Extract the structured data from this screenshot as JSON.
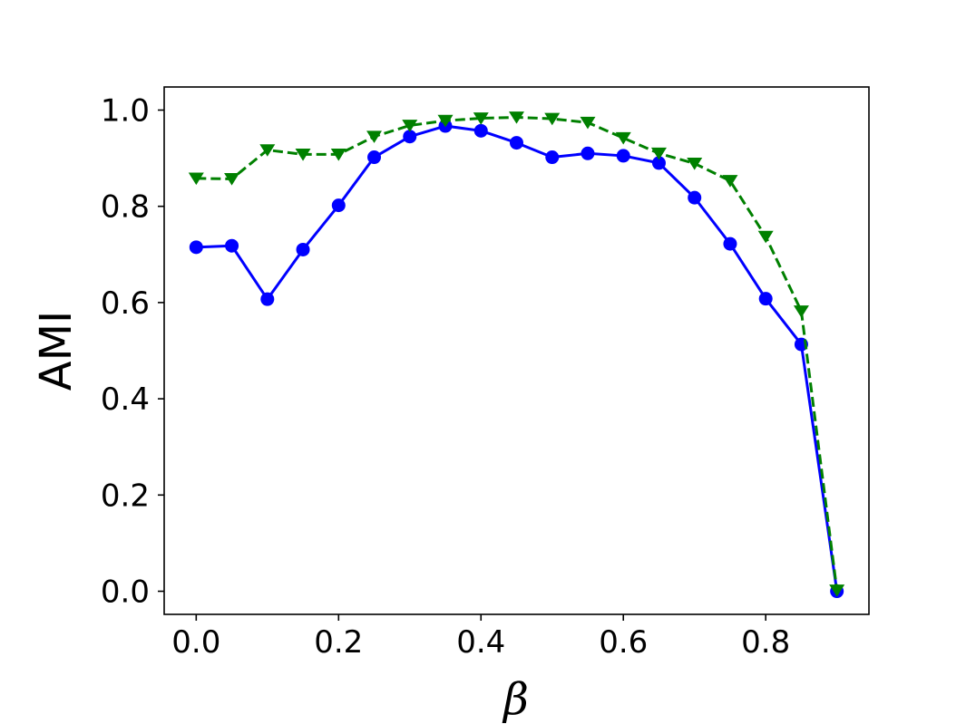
{
  "chart_data": {
    "type": "line",
    "xlabel": "β",
    "ylabel": "AMI",
    "xlim": [
      -0.045,
      0.945
    ],
    "ylim": [
      -0.048,
      1.048
    ],
    "xticks": [
      {
        "value": 0.0,
        "label": "0.0"
      },
      {
        "value": 0.2,
        "label": "0.2"
      },
      {
        "value": 0.4,
        "label": "0.4"
      },
      {
        "value": 0.6,
        "label": "0.6"
      },
      {
        "value": 0.8,
        "label": "0.8"
      }
    ],
    "yticks": [
      {
        "value": 0.0,
        "label": "0.0"
      },
      {
        "value": 0.2,
        "label": "0.2"
      },
      {
        "value": 0.4,
        "label": "0.4"
      },
      {
        "value": 0.6,
        "label": "0.6"
      },
      {
        "value": 0.8,
        "label": "0.8"
      },
      {
        "value": 1.0,
        "label": "1.0"
      }
    ],
    "grid": false,
    "x": [
      0.0,
      0.05,
      0.1,
      0.15,
      0.2,
      0.25,
      0.3,
      0.35,
      0.4,
      0.45,
      0.5,
      0.55,
      0.6,
      0.65,
      0.7,
      0.75,
      0.8,
      0.85,
      0.9
    ],
    "series": [
      {
        "color": "#0000ff",
        "line_style": "solid",
        "marker": "circle",
        "values": [
          0.715,
          0.718,
          0.607,
          0.71,
          0.802,
          0.902,
          0.945,
          0.967,
          0.957,
          0.932,
          0.902,
          0.91,
          0.905,
          0.89,
          0.818,
          0.722,
          0.608,
          0.513,
          0.0
        ]
      },
      {
        "color": "#008000",
        "line_style": "dashed",
        "marker": "triangle-down",
        "values": [
          0.858,
          0.857,
          0.917,
          0.908,
          0.908,
          0.945,
          0.968,
          0.978,
          0.983,
          0.985,
          0.982,
          0.974,
          0.942,
          0.91,
          0.889,
          0.853,
          0.737,
          0.582,
          0.002
        ]
      }
    ]
  }
}
